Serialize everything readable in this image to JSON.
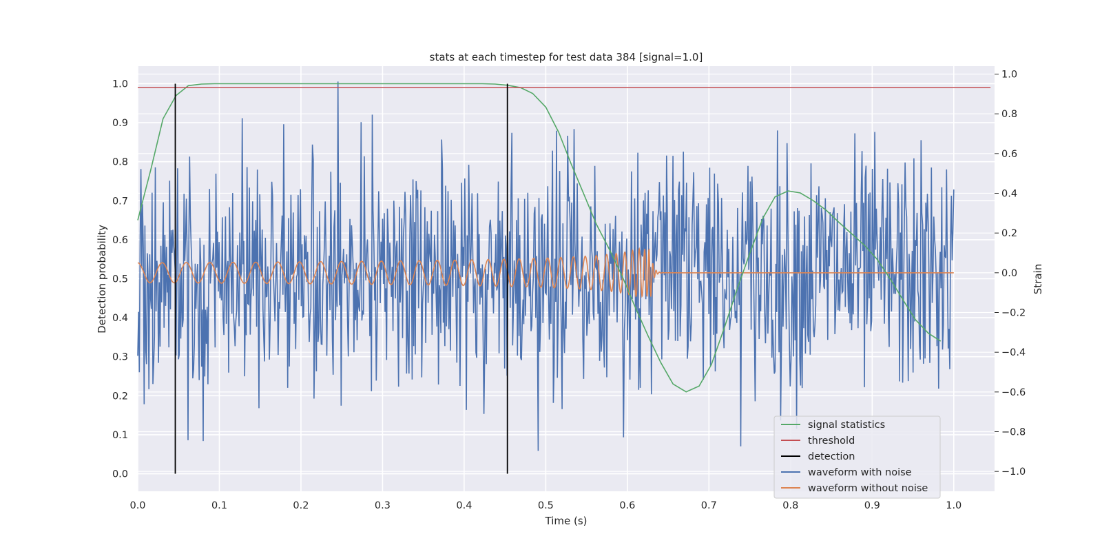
{
  "chart_data": {
    "type": "line",
    "title": "stats at each timestep for test data 384 [signal=1.0]",
    "xlabel": "Time (s)",
    "ylabel": "Detection probability",
    "y2label": "Strain",
    "xlim": [
      0.0,
      1.05
    ],
    "ylim": [
      -0.045,
      1.045
    ],
    "y2lim": [
      -1.1,
      1.04
    ],
    "xticks": [
      "0.0",
      "0.1",
      "0.2",
      "0.3",
      "0.4",
      "0.5",
      "0.6",
      "0.7",
      "0.8",
      "0.9",
      "1.0"
    ],
    "yticks": [
      "0.0",
      "0.1",
      "0.2",
      "0.3",
      "0.4",
      "0.5",
      "0.6",
      "0.7",
      "0.8",
      "0.9",
      "1.0"
    ],
    "y2ticks": [
      "−1.0",
      "−0.8",
      "−0.6",
      "−0.4",
      "−0.2",
      "0.0",
      "0.2",
      "0.4",
      "0.6",
      "0.8",
      "1.0"
    ],
    "grid": true,
    "legend_position": "lower-right",
    "legend": [
      {
        "label": "signal statistics",
        "color": "#55a868"
      },
      {
        "label": "threshold",
        "color": "#c44e52"
      },
      {
        "label": "detection",
        "color": "#000000"
      },
      {
        "label": "waveform with noise",
        "color": "#4c72b0"
      },
      {
        "label": "waveform without noise",
        "color": "#dd8452"
      }
    ],
    "series": [
      {
        "name": "signal statistics",
        "axis": "left",
        "color": "#55a868",
        "x": [
          0.0,
          0.016,
          0.031,
          0.047,
          0.062,
          0.078,
          0.094,
          0.109,
          0.125,
          0.141,
          0.156,
          0.172,
          0.188,
          0.203,
          0.219,
          0.234,
          0.25,
          0.266,
          0.281,
          0.297,
          0.312,
          0.328,
          0.344,
          0.359,
          0.375,
          0.391,
          0.406,
          0.422,
          0.438,
          0.453,
          0.469,
          0.484,
          0.5,
          0.516,
          0.531,
          0.547,
          0.562,
          0.578,
          0.594,
          0.609,
          0.625,
          0.641,
          0.656,
          0.672,
          0.688,
          0.703,
          0.719,
          0.734,
          0.75,
          0.766,
          0.781,
          0.797,
          0.812,
          0.828,
          0.844,
          0.859,
          0.875,
          0.891,
          0.906,
          0.922,
          0.938,
          0.953,
          0.969,
          0.984
        ],
        "values": [
          0.65,
          0.78,
          0.91,
          0.97,
          0.995,
          0.999,
          1.0,
          1.0,
          1.0,
          1.0,
          1.0,
          1.0,
          1.0,
          1.0,
          1.0,
          1.0,
          1.0,
          1.0,
          1.0,
          1.0,
          1.0,
          1.0,
          1.0,
          1.0,
          1.0,
          1.0,
          1.0,
          1.0,
          0.999,
          0.996,
          0.99,
          0.975,
          0.94,
          0.875,
          0.795,
          0.715,
          0.64,
          0.575,
          0.505,
          0.43,
          0.355,
          0.285,
          0.23,
          0.21,
          0.225,
          0.28,
          0.375,
          0.47,
          0.565,
          0.655,
          0.71,
          0.725,
          0.72,
          0.7,
          0.675,
          0.645,
          0.615,
          0.585,
          0.55,
          0.5,
          0.445,
          0.395,
          0.36,
          0.34
        ]
      },
      {
        "name": "threshold",
        "axis": "left",
        "color": "#c44e52",
        "x": [
          0.0,
          1.045
        ],
        "values": [
          0.99,
          0.99
        ]
      },
      {
        "name": "detection",
        "axis": "left",
        "color": "#000000",
        "type": "vlines",
        "x": [
          0.046,
          0.453
        ],
        "ymin": 0.0,
        "ymax": 1.0
      },
      {
        "name": "waveform with noise",
        "axis": "right",
        "color": "#4c72b0",
        "x_range": [
          0.0,
          1.0
        ],
        "samples": 1024,
        "amplitude_std": 0.3,
        "range": [
          -1.0,
          1.0
        ]
      },
      {
        "name": "waveform without noise",
        "axis": "right",
        "color": "#dd8452",
        "x_range": [
          0.0,
          1.0
        ],
        "merger_time": 0.63,
        "start_frequency_hz": 33,
        "start_amplitude": 0.05,
        "peak_amplitude": 0.12
      }
    ]
  }
}
